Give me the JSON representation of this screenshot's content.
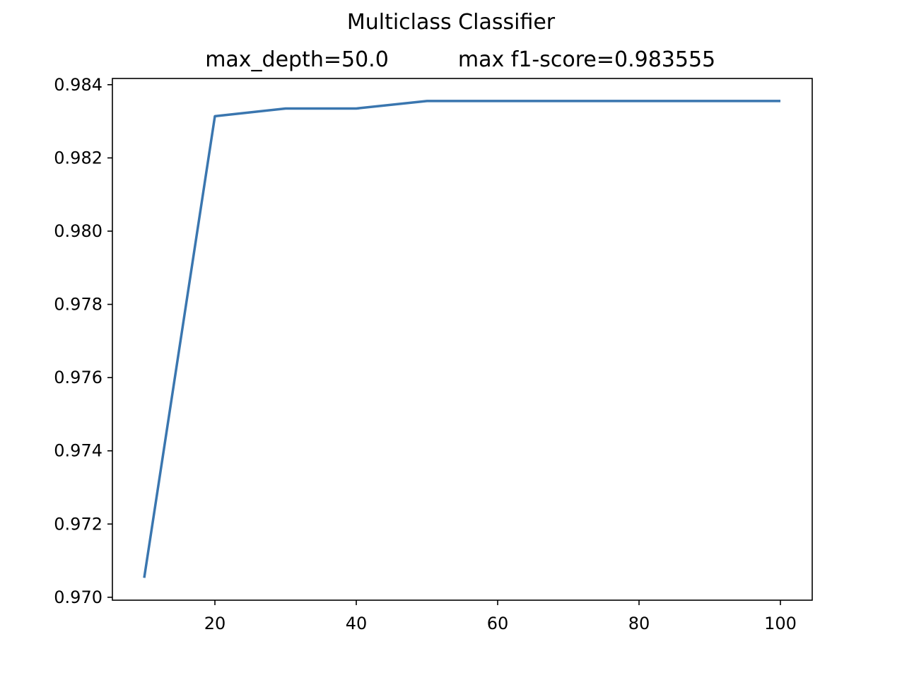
{
  "figure": {
    "suptitle": "Multiclass Classifier",
    "subtitle_left": "max_depth=50.0",
    "subtitle_right": "max f1-score=0.983555"
  },
  "chart_data": {
    "type": "line",
    "title": "Multiclass Classifier",
    "subtitle": "max_depth=50.0      max f1-score=0.983555",
    "xlabel": "",
    "ylabel": "",
    "x": [
      10,
      20,
      30,
      40,
      50,
      60,
      70,
      80,
      90,
      100
    ],
    "series": [
      {
        "values": [
          0.97053,
          0.98314,
          0.98335,
          0.98335,
          0.983555,
          0.983555,
          0.983555,
          0.983555,
          0.983555,
          0.983555
        ],
        "color": "#3a76af"
      }
    ],
    "xlim": [
      5.5,
      104.5
    ],
    "ylim": [
      0.96992,
      0.98417
    ],
    "xticks": [
      20,
      40,
      60,
      80,
      100
    ],
    "yticks": [
      0.97,
      0.972,
      0.974,
      0.976,
      0.978,
      0.98,
      0.982,
      0.984
    ],
    "xtick_labels": [
      "20",
      "40",
      "60",
      "80",
      "100"
    ],
    "ytick_labels": [
      "0.970",
      "0.972",
      "0.974",
      "0.976",
      "0.978",
      "0.980",
      "0.982",
      "0.984"
    ],
    "grid": false,
    "legend": "none"
  }
}
